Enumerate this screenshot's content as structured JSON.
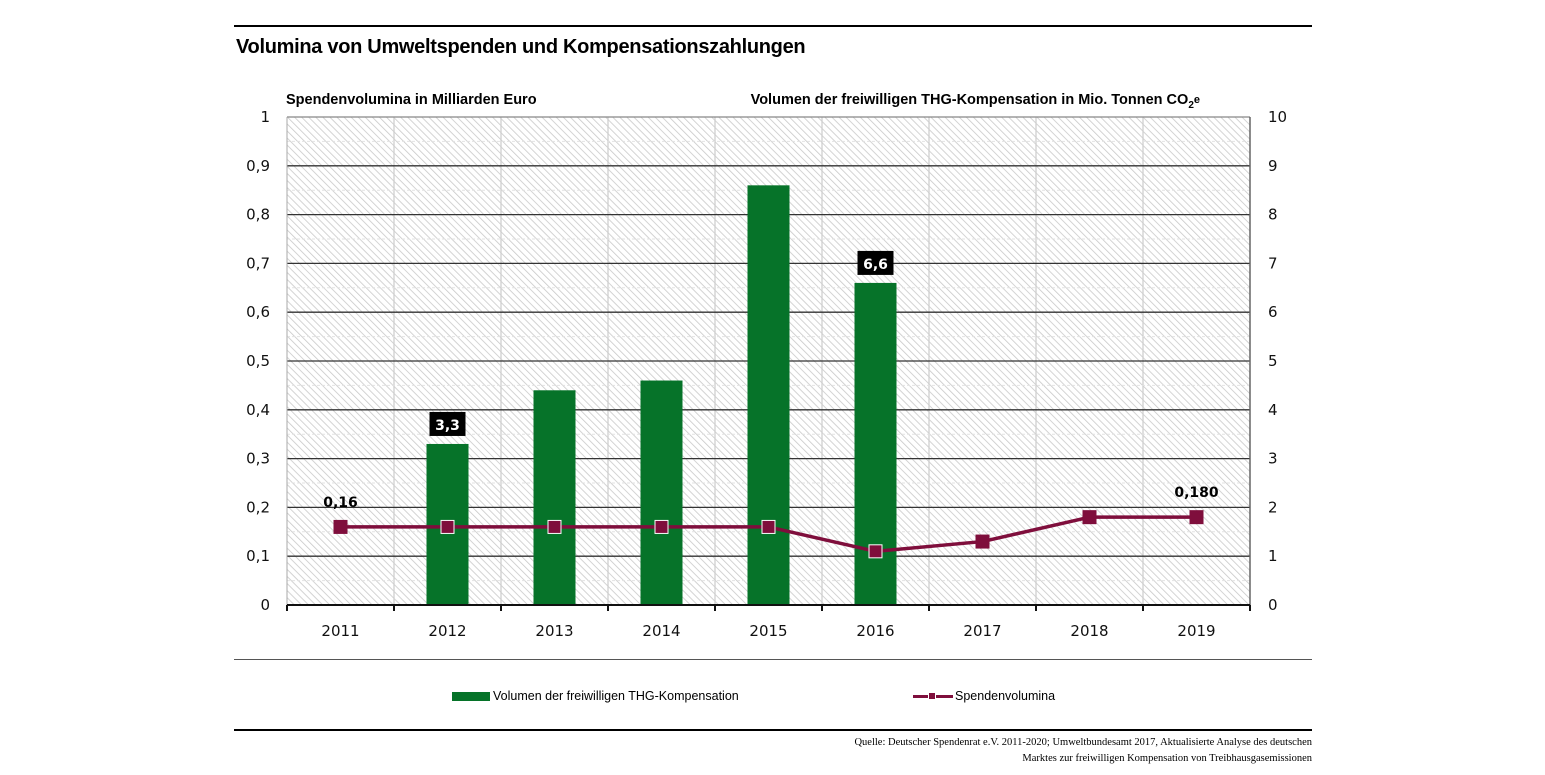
{
  "chart_data": {
    "type": "bar+line",
    "title": "Volumina von Umweltspenden und Kompensationszahlungen",
    "categories": [
      "2011",
      "2012",
      "2013",
      "2014",
      "2015",
      "2016",
      "2017",
      "2018",
      "2019"
    ],
    "left_axis": {
      "label": "Spendenvolumina in Milliarden Euro",
      "range": [
        0,
        1
      ],
      "ticks": [
        "0",
        "0,1",
        "0,2",
        "0,3",
        "0,4",
        "0,5",
        "0,6",
        "0,7",
        "0,8",
        "0,9",
        "1"
      ],
      "tick_values": [
        0,
        0.1,
        0.2,
        0.3,
        0.4,
        0.5,
        0.6,
        0.7,
        0.8,
        0.9,
        1
      ]
    },
    "right_axis": {
      "label": "Volumen der freiwilligen THG-Kompensation in Mio. Tonnen CO",
      "label_sub": "2",
      "label_suffix": "e",
      "range": [
        0,
        10
      ],
      "ticks": [
        "0",
        "1",
        "2",
        "3",
        "4",
        "5",
        "6",
        "7",
        "8",
        "9",
        "10"
      ],
      "tick_values": [
        0,
        1,
        2,
        3,
        4,
        5,
        6,
        7,
        8,
        9,
        10
      ]
    },
    "series": [
      {
        "name": "Volumen der freiwilligen THG-Kompensation",
        "type": "bar",
        "axis": "right",
        "color": "#067329",
        "values": [
          null,
          3.3,
          4.4,
          4.6,
          8.6,
          6.6,
          null,
          null,
          null
        ],
        "data_labels": [
          null,
          "3,3",
          null,
          null,
          null,
          "6,6",
          null,
          null,
          null
        ]
      },
      {
        "name": "Spendenvolumina",
        "type": "line",
        "axis": "left",
        "color": "#7f0e3c",
        "values": [
          0.16,
          0.16,
          0.16,
          0.16,
          0.16,
          0.11,
          0.13,
          0.18,
          0.18
        ],
        "data_labels": [
          "0,16",
          null,
          null,
          null,
          null,
          null,
          null,
          null,
          "0,180"
        ]
      }
    ],
    "grid": true,
    "background": "hatched",
    "legend_position": "bottom"
  },
  "source": {
    "line1": "Quelle: Deutscher Spendenrat e.V. 2011-2020; Umweltbundesamt 2017, Aktualisierte Analyse des deutschen",
    "line2": "Marktes zur freiwilligen Kompensation von Treibhausgasemissionen"
  }
}
